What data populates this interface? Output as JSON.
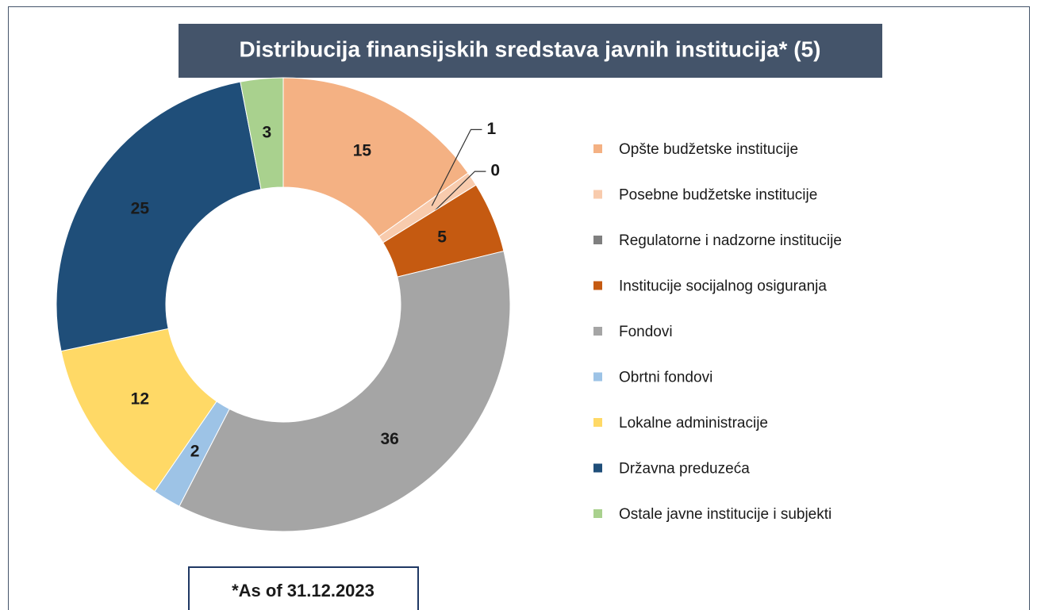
{
  "chart_data": {
    "type": "donut",
    "title": "Distribucija finansijskih sredstava javnih institucija* (5)",
    "note": "*As of 31.12.2023",
    "categories": [
      "Opšte budžetske institucije",
      "Posebne budžetske institucije",
      "Regulatorne i nadzorne institucije",
      "Institucije socijalnog osiguranja",
      "Fondovi",
      "Obrtni fondovi",
      "Lokalne administracije",
      "Državna preduzeća",
      "Ostale javne institucije i subjekti"
    ],
    "values": [
      15,
      1,
      0,
      5,
      36,
      2,
      12,
      25,
      3
    ],
    "colors": [
      "#f4b183",
      "#f8cbad",
      "#7f7f7f",
      "#c55a11",
      "#a5a5a5",
      "#9dc3e6",
      "#ffd966",
      "#1f4e79",
      "#a9d18e"
    ],
    "legend": "right"
  }
}
